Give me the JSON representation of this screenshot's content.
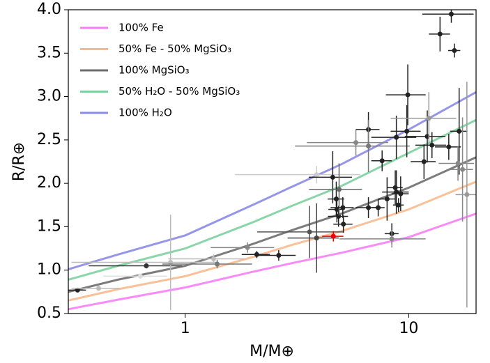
{
  "chart_data": {
    "type": "scatter",
    "xlabel": "M/M⊕",
    "ylabel": "R/R⊕",
    "log_x": true,
    "xlim": [
      0.3,
      20
    ],
    "ylim": [
      0.5,
      4.0
    ],
    "xticks": [
      1,
      10
    ],
    "yticks": [
      0.5,
      {
        "value": 1,
        "label": "1.0"
      },
      1.5,
      {
        "value": 2,
        "label": "2.0"
      },
      2.5,
      {
        "value": 3,
        "label": "3.0"
      },
      3.5,
      {
        "value": 4,
        "label": "4.0"
      }
    ],
    "legend": "upper left",
    "x": [
      0.3,
      0.5,
      1,
      2,
      3,
      5,
      10,
      20
    ],
    "series": [
      {
        "name": "100% Fe",
        "color": "#f77ef7",
        "values": [
          0.55,
          0.66,
          0.8,
          0.98,
          1.08,
          1.2,
          1.38,
          1.65
        ]
      },
      {
        "name": "50% Fe - 50% MgSiO₃",
        "color": "#f9b98c",
        "values": [
          0.65,
          0.78,
          0.93,
          1.15,
          1.29,
          1.45,
          1.7,
          2.02
        ]
      },
      {
        "name": "100% MgSiO₃",
        "color": "#6e6e6e",
        "values": [
          0.75,
          0.89,
          1.05,
          1.3,
          1.46,
          1.65,
          1.95,
          2.3
        ]
      },
      {
        "name": "50% H₂O - 50% MgSiO₃",
        "color": "#7dd19f",
        "values": [
          0.89,
          1.05,
          1.25,
          1.55,
          1.74,
          1.97,
          2.35,
          2.73
        ]
      },
      {
        "name": "100% H₂O",
        "color": "#8a8ae8",
        "values": [
          1.01,
          1.18,
          1.4,
          1.75,
          1.96,
          2.22,
          2.62,
          3.05
        ]
      }
    ],
    "points": [
      {
        "x": 0.33,
        "y": 0.77,
        "x_err": 0.03,
        "y_err": 0.02,
        "color": "#222"
      },
      {
        "x": 0.41,
        "y": 0.79,
        "x_err": 0.1,
        "y_err": 0.02,
        "color": "#bbb"
      },
      {
        "x": 0.67,
        "y": 1.05,
        "x_err": 0.3,
        "y_err": 0.03,
        "color": "#333"
      },
      {
        "x": 0.63,
        "y": 0.93,
        "x_err": 0.2,
        "y_err": 0.03,
        "color": "#ddd"
      },
      {
        "x": 0.86,
        "y": 1.09,
        "x_err": 0.55,
        "y_err": 0.55,
        "color": "#bbb"
      },
      {
        "x": 1.34,
        "y": 1.13,
        "x_err": 0.5,
        "y_err": 0.05,
        "color": "#bbb"
      },
      {
        "x": 1.39,
        "y": 1.07,
        "x_err": 0.6,
        "y_err": 0.05,
        "color": "#777"
      },
      {
        "x": 1.9,
        "y": 1.26,
        "x_err": 0.6,
        "y_err": 0.06,
        "color": "#888"
      },
      {
        "x": 2.09,
        "y": 1.18,
        "x_err": 0.3,
        "y_err": 0.04,
        "color": "#222"
      },
      {
        "x": 2.62,
        "y": 1.17,
        "x_err": 0.5,
        "y_err": 0.06,
        "color": "#222"
      },
      {
        "x": 3.6,
        "y": 1.44,
        "x_err": 1.5,
        "y_err": 0.3,
        "color": "#555"
      },
      {
        "x": 3.87,
        "y": 1.37,
        "x_err": 1.0,
        "y_err": 0.4,
        "color": "#444"
      },
      {
        "x": 3.87,
        "y": 2.1,
        "x_err": 2.2,
        "y_err": 0.1,
        "color": "#ccc"
      },
      {
        "x": 4.6,
        "y": 1.39,
        "x_err": 0.5,
        "y_err": 0.06,
        "color": "#e00"
      },
      {
        "x": 4.57,
        "y": 2.07,
        "x_err": 1.0,
        "y_err": 0.3,
        "color": "#222"
      },
      {
        "x": 4.74,
        "y": 1.82,
        "x_err": 0.4,
        "y_err": 0.2,
        "color": "#222"
      },
      {
        "x": 4.77,
        "y": 1.7,
        "x_err": 0.4,
        "y_err": 0.15,
        "color": "#222"
      },
      {
        "x": 4.85,
        "y": 1.62,
        "x_err": 0.5,
        "y_err": 0.12,
        "color": "#222"
      },
      {
        "x": 4.88,
        "y": 1.93,
        "x_err": 1.3,
        "y_err": 0.3,
        "color": "#666"
      },
      {
        "x": 5.07,
        "y": 1.72,
        "x_err": 0.6,
        "y_err": 0.12,
        "color": "#222"
      },
      {
        "x": 5.1,
        "y": 1.53,
        "x_err": 0.5,
        "y_err": 0.1,
        "color": "#222"
      },
      {
        "x": 5.8,
        "y": 2.47,
        "x_err": 2.3,
        "y_err": 0.15,
        "color": "#888"
      },
      {
        "x": 6.6,
        "y": 2.62,
        "x_err": 0.8,
        "y_err": 0.2,
        "color": "#222"
      },
      {
        "x": 6.6,
        "y": 2.43,
        "x_err": 3.5,
        "y_err": 0.3,
        "color": "#777"
      },
      {
        "x": 6.6,
        "y": 1.72,
        "x_err": 0.8,
        "y_err": 0.12,
        "color": "#222"
      },
      {
        "x": 7.3,
        "y": 1.72,
        "x_err": 0.5,
        "y_err": 0.1,
        "color": "#222"
      },
      {
        "x": 7.6,
        "y": 2.26,
        "x_err": 0.8,
        "y_err": 0.12,
        "color": "#222"
      },
      {
        "x": 8.0,
        "y": 1.82,
        "x_err": 0.7,
        "y_err": 0.25,
        "color": "#222"
      },
      {
        "x": 8.4,
        "y": 1.42,
        "x_err": 0.6,
        "y_err": 0.12,
        "color": "#222"
      },
      {
        "x": 8.4,
        "y": 1.36,
        "x_err": 3.5,
        "y_err": 0.1,
        "color": "#888"
      },
      {
        "x": 8.7,
        "y": 1.95,
        "x_err": 0.7,
        "y_err": 0.2,
        "color": "#222"
      },
      {
        "x": 8.8,
        "y": 1.9,
        "x_err": 1.2,
        "y_err": 0.25,
        "color": "#222"
      },
      {
        "x": 9.0,
        "y": 1.75,
        "x_err": 0.5,
        "y_err": 0.08,
        "color": "#222"
      },
      {
        "x": 8.8,
        "y": 2.53,
        "x_err": 2.0,
        "y_err": 0.25,
        "color": "#222"
      },
      {
        "x": 9.2,
        "y": 1.88,
        "x_err": 0.8,
        "y_err": 0.2,
        "color": "#222"
      },
      {
        "x": 9.8,
        "y": 2.6,
        "x_err": 1.5,
        "y_err": 0.3,
        "color": "#222"
      },
      {
        "x": 9.9,
        "y": 3.02,
        "x_err": 2.0,
        "y_err": 0.35,
        "color": "#222"
      },
      {
        "x": 11.7,
        "y": 2.25,
        "x_err": 1.5,
        "y_err": 0.2,
        "color": "#222"
      },
      {
        "x": 12.1,
        "y": 2.54,
        "x_err": 2.5,
        "y_err": 0.3,
        "color": "#222"
      },
      {
        "x": 12.3,
        "y": 2.75,
        "x_err": 4.0,
        "y_err": 0.3,
        "color": "#999"
      },
      {
        "x": 12.7,
        "y": 2.44,
        "x_err": 2.0,
        "y_err": 0.15,
        "color": "#222"
      },
      {
        "x": 13.8,
        "y": 3.72,
        "x_err": 1.5,
        "y_err": 0.2,
        "color": "#222"
      },
      {
        "x": 15.5,
        "y": 3.95,
        "x_err": 4.0,
        "y_err": 0.1,
        "color": "#222"
      },
      {
        "x": 15.1,
        "y": 2.42,
        "x_err": 2.0,
        "y_err": 0.15,
        "color": "#222"
      },
      {
        "x": 16.0,
        "y": 3.53,
        "x_err": 1.0,
        "y_err": 0.08,
        "color": "#222"
      },
      {
        "x": 16.8,
        "y": 2.6,
        "x_err": 1.5,
        "y_err": 0.5,
        "color": "#222"
      },
      {
        "x": 16.6,
        "y": 2.23,
        "x_err": 3.0,
        "y_err": 0.2,
        "color": "#888"
      },
      {
        "x": 17.4,
        "y": 2.16,
        "x_err": 2.0,
        "y_err": 0.6,
        "color": "#888"
      },
      {
        "x": 18.2,
        "y": 1.87,
        "x_err": 2.0,
        "y_err": 1.3,
        "color": "#999"
      }
    ]
  }
}
